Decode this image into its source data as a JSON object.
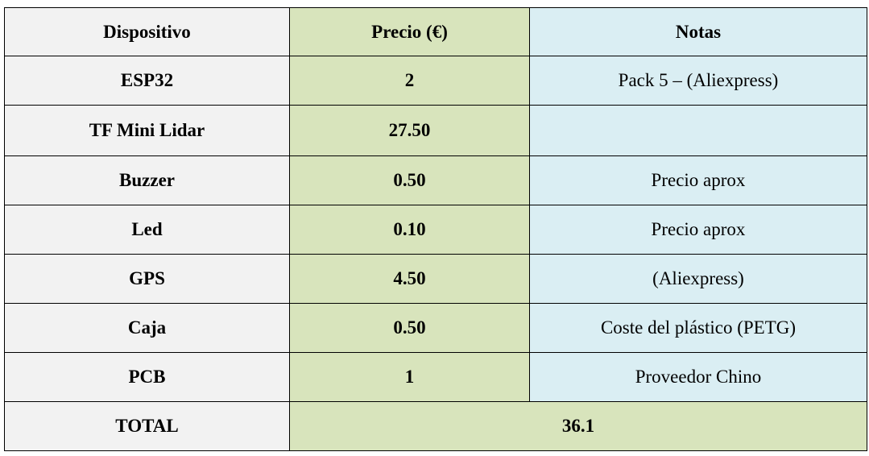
{
  "table": {
    "headers": {
      "device": "Dispositivo",
      "price": "Precio (€)",
      "notes": "Notas"
    },
    "rows": [
      {
        "device": "ESP32",
        "price": "2",
        "notes": "Pack 5 – (Aliexpress)"
      },
      {
        "device": "TF Mini Lidar",
        "price": "27.50",
        "notes": ""
      },
      {
        "device": "Buzzer",
        "price": "0.50",
        "notes": "Precio aprox"
      },
      {
        "device": "Led",
        "price": "0.10",
        "notes": "Precio aprox"
      },
      {
        "device": "GPS",
        "price": "4.50",
        "notes": "(Aliexpress)"
      },
      {
        "device": "Caja",
        "price": "0.50",
        "notes": "Coste del plástico (PETG)"
      },
      {
        "device": "PCB",
        "price": "1",
        "notes": "Proveedor Chino"
      }
    ],
    "total": {
      "label": "TOTAL",
      "value": "36.1"
    }
  },
  "colors": {
    "device_column": "#f2f2f2",
    "price_column": "#d8e4bc",
    "notes_column": "#daeef3",
    "border": "#000000"
  }
}
